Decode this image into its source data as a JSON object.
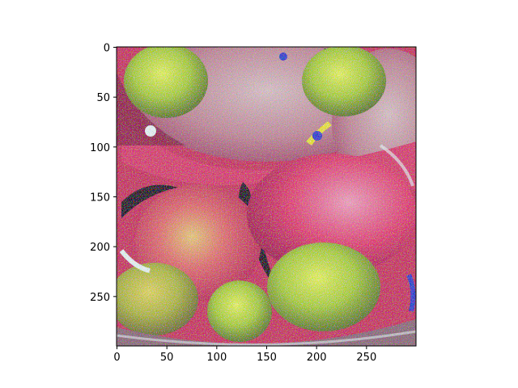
{
  "chart_data": {
    "type": "heatmap",
    "title": "",
    "xlabel": "",
    "ylabel": "",
    "xlim": [
      0,
      300
    ],
    "ylim": [
      300,
      0
    ],
    "x_ticks": [
      "0",
      "50",
      "100",
      "150",
      "200",
      "250"
    ],
    "y_ticks": [
      "0",
      "50",
      "100",
      "150",
      "200",
      "250"
    ],
    "x_tick_values": [
      0,
      50,
      100,
      150,
      200,
      250
    ],
    "y_tick_values": [
      0,
      50,
      100,
      150,
      200,
      250
    ],
    "image_description_colors": {
      "background": "#c8325a",
      "green_fruit": "#b4d23c",
      "pink_fruit": "#e04a78",
      "gray_fruit": "#b4a0a8",
      "dark": "#101010",
      "blue_accent": "#1e3cd2",
      "white_highlight": "#e6f0f8"
    },
    "grid": false,
    "legend": "none"
  }
}
